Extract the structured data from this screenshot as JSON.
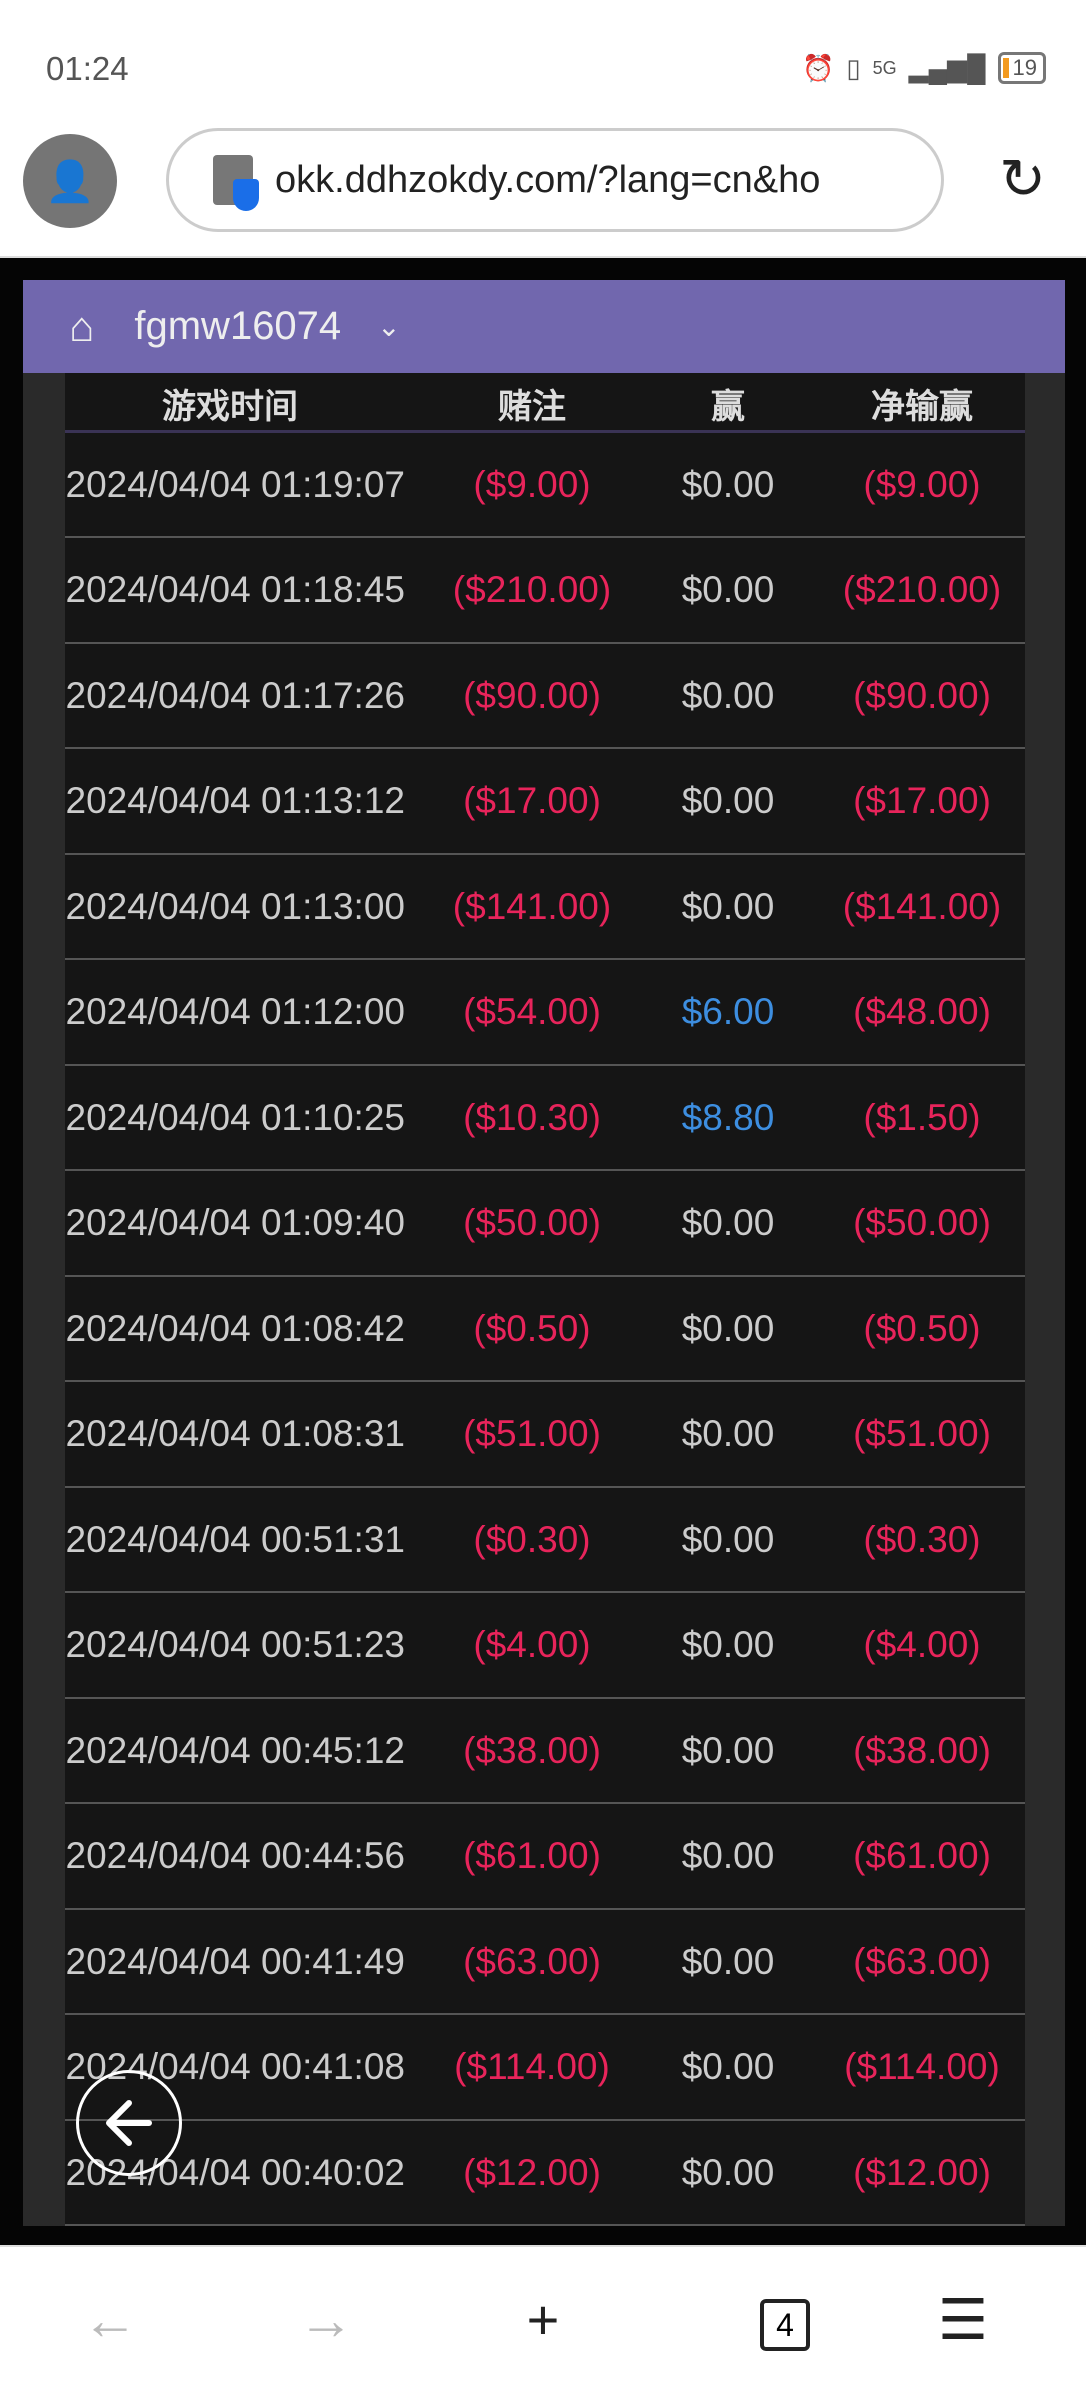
{
  "status": {
    "time": "01:24",
    "battery": "19",
    "network": "5G"
  },
  "browser": {
    "url": "okk.ddhzokdy.com/?lang=cn&ho",
    "tab_count": "4"
  },
  "header": {
    "username": "fgmw16074"
  },
  "table": {
    "columns": [
      "游戏时间",
      "赌注",
      "赢",
      "净输赢"
    ],
    "rows": [
      [
        "2024/04/04 01:19:07",
        "($9.00)",
        "$0.00",
        "($9.00)"
      ],
      [
        "2024/04/04 01:18:45",
        "($210.00)",
        "$0.00",
        "($210.00)"
      ],
      [
        "2024/04/04 01:17:26",
        "($90.00)",
        "$0.00",
        "($90.00)"
      ],
      [
        "2024/04/04 01:13:12",
        "($17.00)",
        "$0.00",
        "($17.00)"
      ],
      [
        "2024/04/04 01:13:00",
        "($141.00)",
        "$0.00",
        "($141.00)"
      ],
      [
        "2024/04/04 01:12:00",
        "($54.00)",
        "$6.00",
        "($48.00)"
      ],
      [
        "2024/04/04 01:10:25",
        "($10.30)",
        "$8.80",
        "($1.50)"
      ],
      [
        "2024/04/04 01:09:40",
        "($50.00)",
        "$0.00",
        "($50.00)"
      ],
      [
        "2024/04/04 01:08:42",
        "($0.50)",
        "$0.00",
        "($0.50)"
      ],
      [
        "2024/04/04 01:08:31",
        "($51.00)",
        "$0.00",
        "($51.00)"
      ],
      [
        "2024/04/04 00:51:31",
        "($0.30)",
        "$0.00",
        "($0.30)"
      ],
      [
        "2024/04/04 00:51:23",
        "($4.00)",
        "$0.00",
        "($4.00)"
      ],
      [
        "2024/04/04 00:45:12",
        "($38.00)",
        "$0.00",
        "($38.00)"
      ],
      [
        "2024/04/04 00:44:56",
        "($61.00)",
        "$0.00",
        "($61.00)"
      ],
      [
        "2024/04/04 00:41:49",
        "($63.00)",
        "$0.00",
        "($63.00)"
      ],
      [
        "2024/04/04 00:41:08",
        "($114.00)",
        "$0.00",
        "($114.00)"
      ],
      [
        "2024/04/04 00:40:02",
        "($12.00)",
        "$0.00",
        "($12.00)"
      ]
    ]
  },
  "colors": {
    "header": "#7167ae",
    "negative": "#e8245b",
    "positive": "#3d8ee0",
    "neutral": "#cccccc"
  }
}
